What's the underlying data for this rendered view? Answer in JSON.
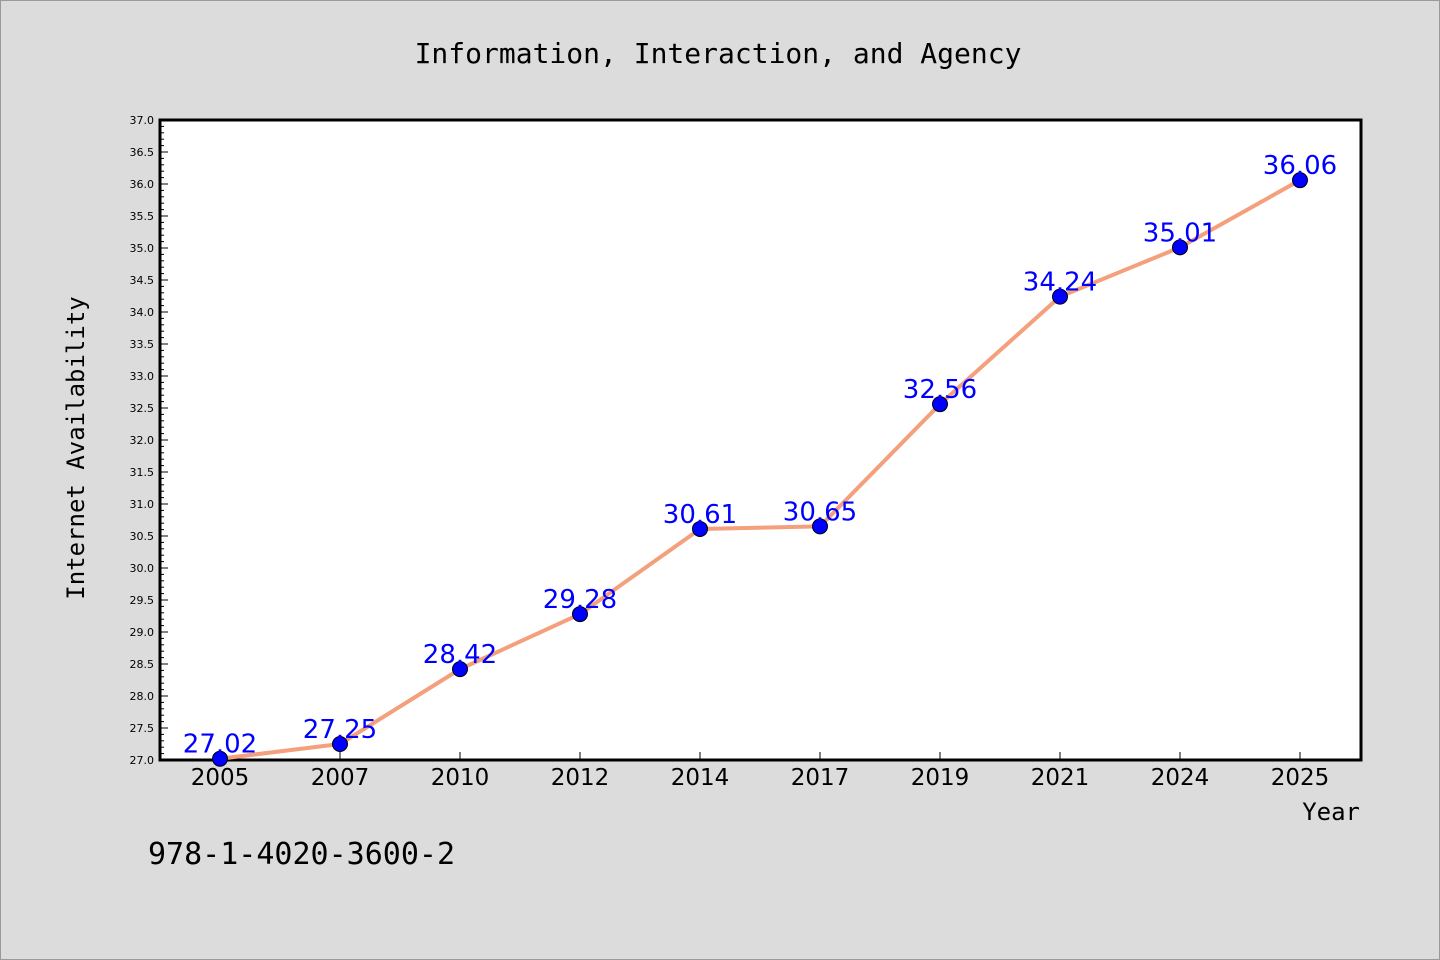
{
  "chart_data": {
    "type": "line",
    "title": "Information, Interaction, and Agency",
    "xlabel": "Year",
    "ylabel": "Internet Availability",
    "categories": [
      "2005",
      "2007",
      "2010",
      "2012",
      "2014",
      "2017",
      "2019",
      "2021",
      "2024",
      "2025"
    ],
    "values": [
      27.02,
      27.25,
      28.42,
      29.28,
      30.61,
      30.65,
      32.56,
      34.24,
      35.01,
      36.06
    ],
    "data_labels": [
      "27.02",
      "27.25",
      "28.42",
      "29.28",
      "30.61",
      "30.65",
      "32.56",
      "34.24",
      "35.01",
      "36.06"
    ],
    "ylim": [
      27.0,
      37.0
    ],
    "yticks": [
      "27.0",
      "27.5",
      "28.0",
      "28.5",
      "29.0",
      "29.5",
      "30.0",
      "30.5",
      "31.0",
      "31.5",
      "32.0",
      "32.5",
      "33.0",
      "33.5",
      "34.0",
      "34.5",
      "35.0",
      "35.5",
      "36.0",
      "36.5",
      "37.0"
    ],
    "grid": false,
    "line_color": "#f4a07c",
    "marker_color": "#0000ff",
    "label_color": "#0000ff",
    "background": "#dcdcdc",
    "plot_background": "#ffffff"
  },
  "footer": {
    "isbn": "978-1-4020-3600-2"
  }
}
